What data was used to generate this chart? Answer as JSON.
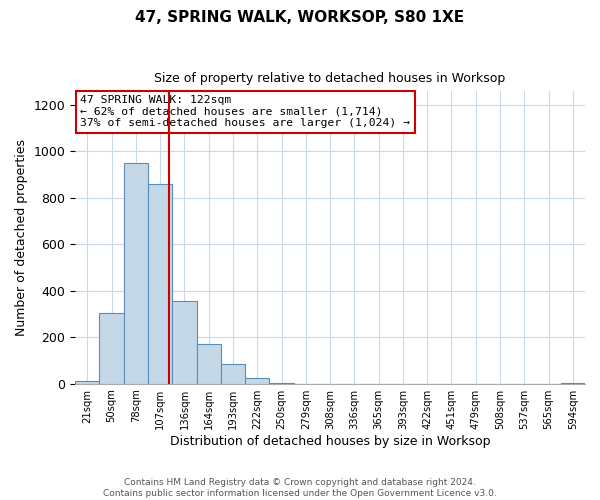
{
  "title": "47, SPRING WALK, WORKSOP, S80 1XE",
  "subtitle": "Size of property relative to detached houses in Worksop",
  "xlabel": "Distribution of detached houses by size in Worksop",
  "ylabel": "Number of detached properties",
  "footer_line1": "Contains HM Land Registry data © Crown copyright and database right 2024.",
  "footer_line2": "Contains public sector information licensed under the Open Government Licence v3.0.",
  "bin_labels": [
    "21sqm",
    "50sqm",
    "78sqm",
    "107sqm",
    "136sqm",
    "164sqm",
    "193sqm",
    "222sqm",
    "250sqm",
    "279sqm",
    "308sqm",
    "336sqm",
    "365sqm",
    "393sqm",
    "422sqm",
    "451sqm",
    "479sqm",
    "508sqm",
    "537sqm",
    "565sqm",
    "594sqm"
  ],
  "bar_values": [
    10,
    305,
    950,
    860,
    355,
    170,
    85,
    25,
    5,
    0,
    0,
    0,
    0,
    0,
    0,
    0,
    0,
    0,
    0,
    0,
    3
  ],
  "bar_color": "#c5d8e8",
  "bar_edge_color": "#5b8db8",
  "vline_x": 3.35,
  "vline_color": "#cc0000",
  "annotation_text": "47 SPRING WALK: 122sqm\n← 62% of detached houses are smaller (1,714)\n37% of semi-detached houses are larger (1,024) →",
  "annotation_box_color": "#ffffff",
  "annotation_box_edge_color": "#cc0000",
  "ylim": [
    0,
    1260
  ],
  "xlim": [
    -0.5,
    20.5
  ],
  "background_color": "#ffffff",
  "grid_color": "#c8daea"
}
